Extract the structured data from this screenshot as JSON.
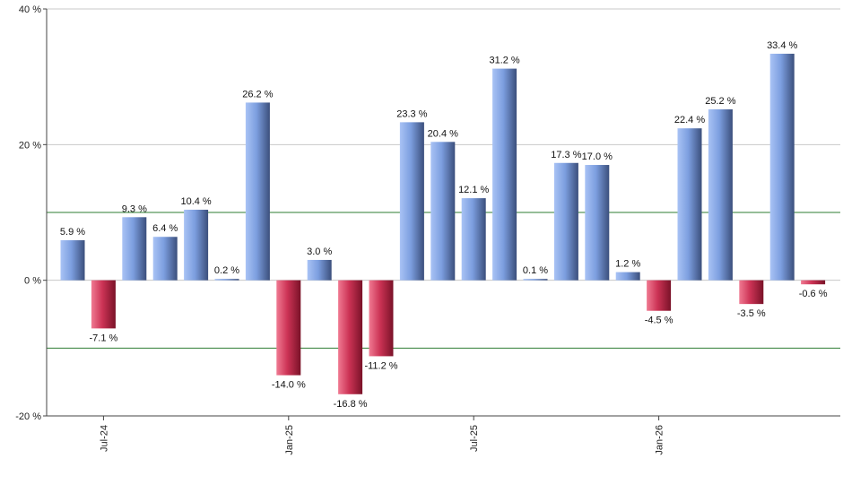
{
  "chart_data": {
    "type": "bar",
    "categories": [
      "Jun-24",
      "Jul-24",
      "Aug-24",
      "Sep-24",
      "Oct-24",
      "Nov-24",
      "Dec-24",
      "Jan-25",
      "Feb-25",
      "Mar-25",
      "Apr-25",
      "May-25",
      "Jun-25",
      "Jul-25",
      "Aug-25",
      "Sep-25",
      "Oct-25",
      "Nov-25",
      "Dec-25",
      "Jan-26",
      "Feb-26",
      "Mar-26",
      "Apr-26",
      "May-26",
      "Jun-26"
    ],
    "values": [
      5.9,
      -7.1,
      9.3,
      6.4,
      10.4,
      0.2,
      26.2,
      -14.0,
      3.0,
      -16.8,
      -11.2,
      23.3,
      20.4,
      12.1,
      31.2,
      0.1,
      17.3,
      17.0,
      1.2,
      -4.5,
      22.4,
      25.2,
      -3.5,
      33.4,
      -0.6
    ],
    "value_labels": [
      "5.9 %",
      "-7.1 %",
      "9.3 %",
      "6.4 %",
      "10.4 %",
      "0.2 %",
      "26.2 %",
      "-14.0 %",
      "3.0 %",
      "-16.8 %",
      "-11.2 %",
      "23.3 %",
      "20.4 %",
      "12.1 %",
      "31.2 %",
      "0.1 %",
      "17.3 %",
      "17.0 %",
      "1.2 %",
      "-4.5 %",
      "22.4 %",
      "25.2 %",
      "-3.5 %",
      "33.4 %",
      "-0.6 %"
    ],
    "title": "",
    "xlabel": "",
    "ylabel": "",
    "ylim": [
      -20,
      40
    ],
    "y_ticks": [
      {
        "value": 40,
        "label": "40 %"
      },
      {
        "value": 20,
        "label": "20 %"
      },
      {
        "value": 0,
        "label": "0 %"
      },
      {
        "value": -20,
        "label": "-20 %"
      }
    ],
    "x_tick_labels": [
      {
        "index": 1,
        "label": "Jul-24"
      },
      {
        "index": 7,
        "label": "Jan-25"
      },
      {
        "index": 13,
        "label": "Jul-25"
      },
      {
        "index": 19,
        "label": "Jan-26"
      }
    ],
    "reference_lines": [
      10,
      -10
    ],
    "grid": true,
    "legend": "none",
    "colors": {
      "positive_light": "#a9c3f5",
      "positive_mid": "#7c9edf",
      "positive_dark": "#3b4f7c",
      "negative_light": "#f07a92",
      "negative_mid": "#cc3355",
      "negative_dark": "#7a1228",
      "reference_line": "#2e7d32",
      "grid_line": "#c8c8c8",
      "axis": "#444444"
    }
  }
}
